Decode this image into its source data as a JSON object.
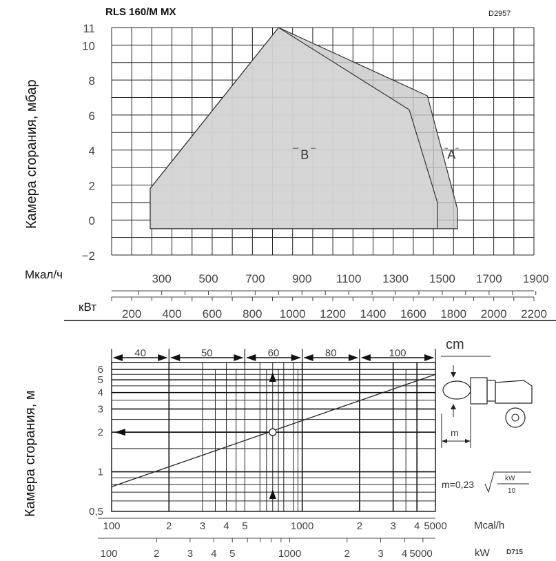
{
  "chart_data": [
    {
      "type": "area",
      "title": "RLS 160/M MX",
      "code": "D2957",
      "ylabel": "Камера сгорания, мбар",
      "ylim": [
        -2,
        11
      ],
      "yticks": [
        -2,
        0,
        2,
        4,
        6,
        8,
        10,
        11
      ],
      "x_axis_mcal": {
        "label": "Мкал/ч",
        "ticks": [
          300,
          500,
          700,
          900,
          1100,
          1300,
          1500,
          1700,
          1900
        ]
      },
      "x_axis_kw": {
        "label": "кВт",
        "ticks": [
          200,
          400,
          600,
          800,
          1000,
          1200,
          1400,
          1600,
          1800,
          2000,
          2200
        ],
        "range": [
          100,
          2200
        ]
      },
      "grid": true,
      "series": [
        {
          "name": "A",
          "points": [
            [
              292,
              -0.5
            ],
            [
              292,
              1.8
            ],
            [
              930,
              11
            ],
            [
              1670,
              7.1
            ],
            [
              1820,
              0.6
            ],
            [
              1820,
              -0.5
            ]
          ]
        },
        {
          "name": "B",
          "points": [
            [
              292,
              -0.5
            ],
            [
              292,
              1.8
            ],
            [
              930,
              11
            ],
            [
              1580,
              6.3
            ],
            [
              1720,
              1.0
            ],
            [
              1720,
              -0.5
            ]
          ]
        }
      ]
    },
    {
      "type": "line",
      "ylabel": "Камера сгорания, м",
      "yscale": "log",
      "xscale": "log",
      "ylim": [
        0.5,
        6
      ],
      "yticks": [
        "0,5",
        "1",
        "2",
        "3",
        "4",
        "5",
        "6"
      ],
      "x_axis_mcal": {
        "label": "Mcal/h",
        "ticks": [
          "100",
          "2",
          "3",
          "4",
          "5",
          "1000",
          "2",
          "3",
          "4",
          "5000"
        ]
      },
      "x_axis_kw": {
        "label": "kW",
        "ticks": [
          "100",
          "2",
          "3",
          "4",
          "5",
          "1000",
          "2",
          "3",
          "4",
          "5000"
        ]
      },
      "diameter_label": "cm",
      "diameter_bands": [
        "40",
        "50",
        "60",
        "80",
        "100"
      ],
      "length_label": "m",
      "formula": {
        "lhs": "m=0,23",
        "numerator": "kW",
        "denominator": "10"
      },
      "code": "D715",
      "series": [
        {
          "points": [
            [
              100,
              0.77
            ],
            [
              5000,
              5.5
            ]
          ]
        }
      ],
      "example_point": {
        "x": 700,
        "y": 2
      }
    }
  ]
}
